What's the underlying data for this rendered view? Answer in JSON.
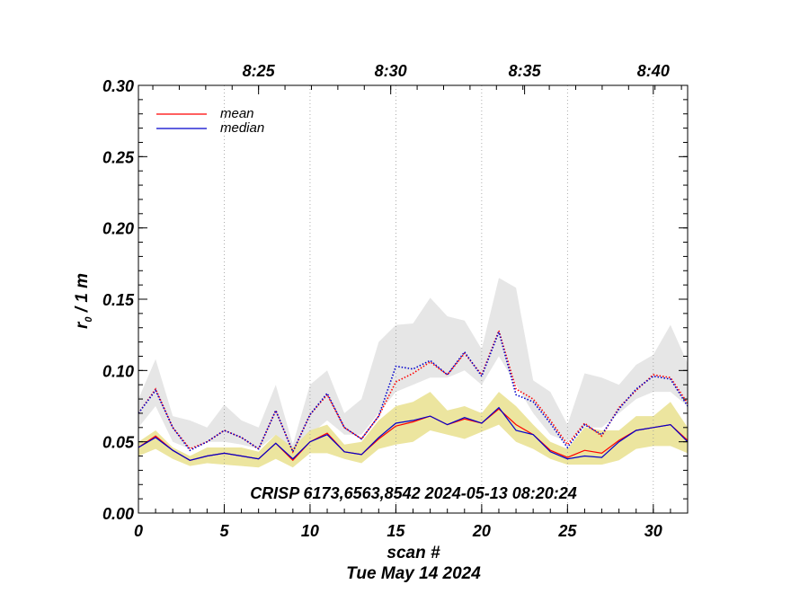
{
  "chart_data": {
    "type": "line",
    "x": [
      0,
      1,
      2,
      3,
      4,
      5,
      6,
      7,
      8,
      9,
      10,
      11,
      12,
      13,
      14,
      15,
      16,
      17,
      18,
      19,
      20,
      21,
      22,
      23,
      24,
      25,
      26,
      27,
      28,
      29,
      30,
      31,
      32
    ],
    "xlabel": "scan #",
    "date_label": "Tue May 14 2024",
    "ylabel_main": "r",
    "ylabel_sub": "0",
    "ylabel_rest": " / 1 m",
    "xlim": [
      0,
      32
    ],
    "ylim": [
      0.0,
      0.3
    ],
    "x_ticks": [
      {
        "value": 0,
        "label": "0"
      },
      {
        "value": 5,
        "label": "5"
      },
      {
        "value": 10,
        "label": "10"
      },
      {
        "value": 15,
        "label": "15"
      },
      {
        "value": 20,
        "label": "20"
      },
      {
        "value": 25,
        "label": "25"
      },
      {
        "value": 30,
        "label": "30"
      }
    ],
    "y_ticks": [
      {
        "value": 0.0,
        "label": "0.00"
      },
      {
        "value": 0.05,
        "label": "0.05"
      },
      {
        "value": 0.1,
        "label": "0.10"
      },
      {
        "value": 0.15,
        "label": "0.15"
      },
      {
        "value": 0.2,
        "label": "0.20"
      },
      {
        "value": 0.25,
        "label": "0.25"
      },
      {
        "value": 0.3,
        "label": "0.30"
      }
    ],
    "top_ticks": [
      {
        "value": 7.0,
        "label": "8:25"
      },
      {
        "value": 14.7,
        "label": "8:30"
      },
      {
        "value": 22.5,
        "label": "8:35"
      },
      {
        "value": 30.0,
        "label": "8:40"
      }
    ],
    "annotation": "CRISP 6173,6563,8542 2024-05-13 08:20:24",
    "legend": [
      {
        "name": "mean",
        "color": "#ff0000"
      },
      {
        "name": "median",
        "color": "#0000cc"
      }
    ],
    "colors": {
      "mean": "#ff0000",
      "median": "#0000cc",
      "upper_band": "#e6e6e6",
      "lower_band": "#ece59f",
      "grid": "#999999"
    },
    "upper_band": {
      "low": [
        0.06,
        0.075,
        0.05,
        0.045,
        0.05,
        0.05,
        0.048,
        0.045,
        0.055,
        0.04,
        0.055,
        0.065,
        0.055,
        0.055,
        0.07,
        0.085,
        0.09,
        0.095,
        0.095,
        0.1,
        0.09,
        0.11,
        0.09,
        0.07,
        0.055,
        0.05,
        0.06,
        0.06,
        0.07,
        0.08,
        0.085,
        0.085,
        0.075
      ],
      "high": [
        0.08,
        0.108,
        0.068,
        0.065,
        0.06,
        0.076,
        0.065,
        0.06,
        0.09,
        0.048,
        0.09,
        0.1,
        0.07,
        0.08,
        0.12,
        0.132,
        0.133,
        0.151,
        0.138,
        0.135,
        0.115,
        0.165,
        0.158,
        0.093,
        0.085,
        0.062,
        0.098,
        0.095,
        0.09,
        0.104,
        0.111,
        0.132,
        0.105
      ]
    },
    "lower_band": {
      "low": [
        0.04,
        0.045,
        0.038,
        0.033,
        0.035,
        0.034,
        0.033,
        0.032,
        0.038,
        0.032,
        0.042,
        0.042,
        0.038,
        0.035,
        0.045,
        0.048,
        0.05,
        0.058,
        0.055,
        0.052,
        0.057,
        0.062,
        0.05,
        0.045,
        0.038,
        0.034,
        0.034,
        0.034,
        0.037,
        0.045,
        0.047,
        0.047,
        0.042
      ],
      "high": [
        0.05,
        0.058,
        0.046,
        0.04,
        0.046,
        0.046,
        0.046,
        0.043,
        0.055,
        0.046,
        0.058,
        0.062,
        0.048,
        0.05,
        0.065,
        0.075,
        0.078,
        0.085,
        0.072,
        0.075,
        0.07,
        0.085,
        0.075,
        0.062,
        0.05,
        0.045,
        0.06,
        0.058,
        0.058,
        0.068,
        0.068,
        0.078,
        0.06
      ]
    },
    "series": [
      {
        "name": "mean",
        "style": "solid",
        "color": "#ff0000",
        "values": [
          0.046,
          0.054,
          0.044,
          0.037,
          0.04,
          0.042,
          0.04,
          0.038,
          0.049,
          0.037,
          0.05,
          0.056,
          0.043,
          0.041,
          0.052,
          0.061,
          0.064,
          0.068,
          0.062,
          0.066,
          0.063,
          0.073,
          0.062,
          0.055,
          0.044,
          0.039,
          0.044,
          0.042,
          0.051,
          0.058,
          0.06,
          0.062,
          0.051
        ]
      },
      {
        "name": "median",
        "style": "solid",
        "color": "#0000cc",
        "values": [
          0.046,
          0.053,
          0.044,
          0.037,
          0.04,
          0.042,
          0.04,
          0.038,
          0.049,
          0.038,
          0.05,
          0.055,
          0.043,
          0.041,
          0.053,
          0.063,
          0.065,
          0.068,
          0.062,
          0.067,
          0.063,
          0.074,
          0.058,
          0.055,
          0.043,
          0.038,
          0.04,
          0.039,
          0.05,
          0.058,
          0.06,
          0.062,
          0.05
        ]
      },
      {
        "name": "mean upper",
        "style": "dotted",
        "color": "#ff0000",
        "values": [
          0.07,
          0.087,
          0.06,
          0.045,
          0.05,
          0.058,
          0.053,
          0.045,
          0.072,
          0.043,
          0.069,
          0.083,
          0.06,
          0.052,
          0.068,
          0.092,
          0.098,
          0.106,
          0.097,
          0.112,
          0.097,
          0.128,
          0.087,
          0.08,
          0.065,
          0.048,
          0.063,
          0.054,
          0.074,
          0.086,
          0.097,
          0.095,
          0.077
        ]
      },
      {
        "name": "median upper",
        "style": "dotted",
        "color": "#0000cc",
        "values": [
          0.07,
          0.086,
          0.06,
          0.044,
          0.05,
          0.058,
          0.053,
          0.045,
          0.072,
          0.043,
          0.069,
          0.084,
          0.06,
          0.052,
          0.068,
          0.103,
          0.101,
          0.107,
          0.097,
          0.113,
          0.096,
          0.127,
          0.083,
          0.078,
          0.063,
          0.046,
          0.062,
          0.055,
          0.073,
          0.087,
          0.096,
          0.094,
          0.075
        ]
      }
    ]
  }
}
